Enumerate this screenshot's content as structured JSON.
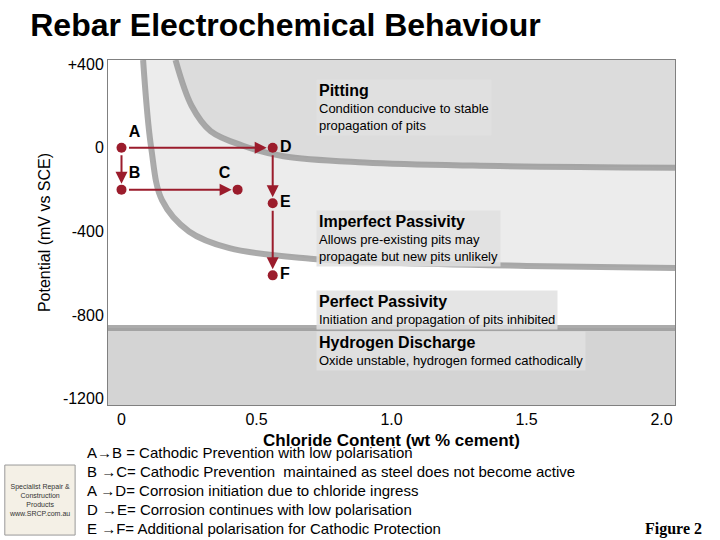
{
  "chart_data": {
    "type": "region",
    "title": "Rebar Electrochemical Behaviour",
    "x_label": "Chloride Content (wt % cement)",
    "y_label": "Potential (mV vs SCE)",
    "xlim": [
      -0.05,
      2.05
    ],
    "ylim": [
      -1230,
      420
    ],
    "xticks": [
      0,
      0.5,
      {
        "value": 1,
        "label": "1.0"
      },
      1.5,
      {
        "value": 2,
        "label": "2.0"
      }
    ],
    "yticks": [
      {
        "value": 400,
        "label": "+400"
      },
      0,
      -400,
      -800,
      -1200
    ],
    "grid": false,
    "tick_labels": true,
    "regions": [
      {
        "label": "Pitting",
        "description": [
          "Condition conducive to stable",
          "propagation of pits"
        ],
        "color": "#dcdcdc",
        "boundary_below": {
          "x": [
            0.2,
            0.26,
            0.33,
            0.45,
            0.6,
            0.9,
            1.3,
            2.05
          ],
          "y": [
            420,
            200,
            80,
            10,
            -40,
            -70,
            -85,
            -95
          ]
        }
      },
      {
        "label": "Imperfect Passivity",
        "description": [
          "Allows pre-existing pits may",
          "propagate but new pits unlikely"
        ],
        "color": "#ececec",
        "boundary_below": {
          "x": [
            0.08,
            0.11,
            0.15,
            0.25,
            0.4,
            0.7,
            1.0,
            1.5,
            2.05
          ],
          "y": [
            420,
            0,
            -250,
            -400,
            -480,
            -530,
            -550,
            -565,
            -575
          ]
        }
      },
      {
        "label": "Perfect Passivity",
        "description": [
          "Initiation and propagation of pits inhibited"
        ],
        "color": "#ffffff",
        "boundary_below": {
          "x": [
            -0.05,
            2.05
          ],
          "y": [
            -862,
            -862
          ]
        }
      },
      {
        "label": "Hydrogen Discharge",
        "description": [
          "Oxide unstable, hydrogen formed cathodically"
        ],
        "color": "#d4d4d4"
      }
    ],
    "points": {
      "color": "#9b1c2c",
      "marker": "circle",
      "items": [
        {
          "label": "A",
          "x": 0,
          "y": 0
        },
        {
          "label": "B",
          "x": 0,
          "y": -200
        },
        {
          "label": "C",
          "x": 0.43,
          "y": -200
        },
        {
          "label": "D",
          "x": 0.56,
          "y": 0
        },
        {
          "label": "E",
          "x": 0.56,
          "y": -265
        },
        {
          "label": "F",
          "x": 0.56,
          "y": -610
        }
      ]
    },
    "arrows": [
      {
        "from": "A",
        "to": "B"
      },
      {
        "from": "B",
        "to": "C"
      },
      {
        "from": "A",
        "to": "D"
      },
      {
        "from": "D",
        "to": "E"
      },
      {
        "from": "E",
        "to": "F"
      }
    ],
    "key": [
      "A→B = Cathodic Prevention with low polarisation",
      "B →C= Cathodic Prevention  maintained as steel does not become active",
      "A →D= Corrosion initiation due to chloride ingress",
      "D →E= Corrosion continues with low polarisation",
      "E →F= Additional polarisation for Cathodic Protection"
    ],
    "figure_label": "Figure 2",
    "logo": [
      "Specialist Repair &",
      "Construction",
      "Products",
      "www.SRCP.com.au"
    ]
  }
}
